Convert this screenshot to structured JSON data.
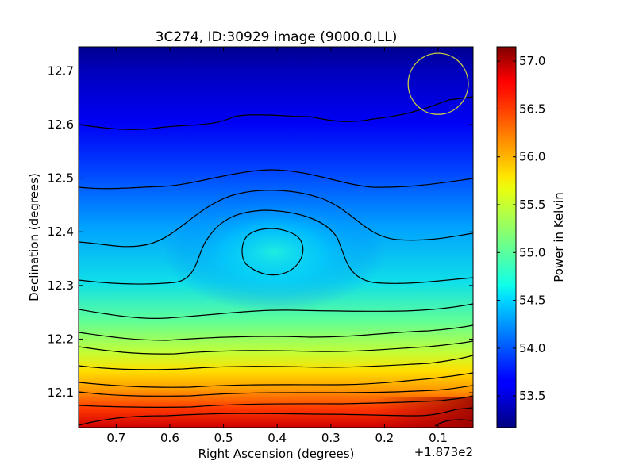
{
  "chart_data": {
    "type": "heatmap",
    "title": "3C274, ID:30929 image (9000.0,LL)",
    "xlabel": "Right Ascension (degrees)",
    "ylabel": "Declination (degrees)",
    "x_offset_label": "+1.873e2",
    "xlim": [
      0.77,
      0.035
    ],
    "ylim": [
      12.035,
      12.745
    ],
    "x_ticks": [
      {
        "value": 0.7,
        "label": "0.7"
      },
      {
        "value": 0.6,
        "label": "0.6"
      },
      {
        "value": 0.5,
        "label": "0.5"
      },
      {
        "value": 0.4,
        "label": "0.4"
      },
      {
        "value": 0.3,
        "label": "0.3"
      },
      {
        "value": 0.2,
        "label": "0.2"
      },
      {
        "value": 0.1,
        "label": "0.1"
      }
    ],
    "y_ticks": [
      {
        "value": 12.1,
        "label": "12.1"
      },
      {
        "value": 12.2,
        "label": "12.2"
      },
      {
        "value": 12.3,
        "label": "12.3"
      },
      {
        "value": 12.4,
        "label": "12.4"
      },
      {
        "value": 12.5,
        "label": "12.5"
      },
      {
        "value": 12.6,
        "label": "12.6"
      },
      {
        "value": 12.7,
        "label": "12.7"
      }
    ],
    "colorbar": {
      "label": "Power in Kelvin",
      "range": [
        53.17,
        57.15
      ],
      "colormap": "jet",
      "ticks": [
        {
          "value": 53.5,
          "label": "53.5"
        },
        {
          "value": 54.0,
          "label": "54.0"
        },
        {
          "value": 54.5,
          "label": "54.5"
        },
        {
          "value": 55.0,
          "label": "55.0"
        },
        {
          "value": 55.5,
          "label": "55.5"
        },
        {
          "value": 56.0,
          "label": "56.0"
        },
        {
          "value": 56.5,
          "label": "56.5"
        },
        {
          "value": 57.0,
          "label": "57.0"
        }
      ]
    },
    "beam": {
      "ra": 0.1,
      "dec": 12.676,
      "radius_ra": 0.056,
      "radius_dec": 0.057,
      "color": "#cccc44"
    },
    "contour_color": "#000000"
  }
}
